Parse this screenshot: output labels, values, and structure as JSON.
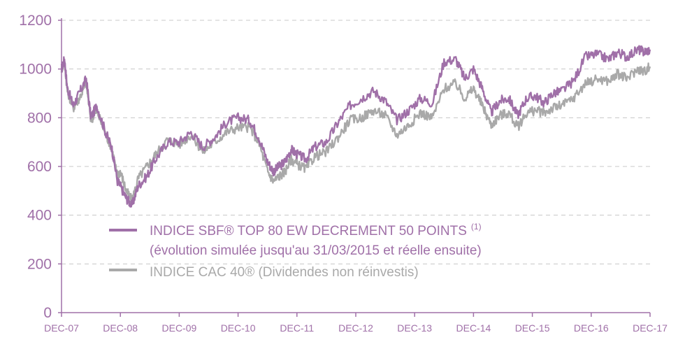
{
  "chart_data": {
    "type": "line",
    "title": "",
    "xlabel": "",
    "ylabel": "",
    "ylim": [
      0,
      1200
    ],
    "yticks": [
      0,
      200,
      400,
      600,
      800,
      1000,
      1200
    ],
    "xtick_labels": [
      "DEC-07",
      "DEC-08",
      "DEC-09",
      "DEC-10",
      "DEC-11",
      "DEC-12",
      "DEC-13",
      "DEC-14",
      "DEC-15",
      "DEC-16",
      "DEC-17"
    ],
    "grid": "horizontal dashed",
    "legend_position": "bottom-center",
    "colors": {
      "sbf": "#a070a8",
      "cac": "#a9a9a9",
      "axis": "#a070a8"
    },
    "series": [
      {
        "name": "INDICE SBF® TOP 80 EW DECREMENT 50 POINTS (1)",
        "name_main": "INDICE SBF® TOP 80 EW DECREMENT 50 POINTS",
        "name_sup": "(1)",
        "name_line2": "(évolution simulée jusqu'au 31/03/2015 et réelle ensuite)",
        "color": "#a070a8",
        "x": [
          0,
          0.05,
          0.1,
          0.2,
          0.3,
          0.42,
          0.5,
          0.6,
          0.75,
          0.85,
          0.95,
          1.0,
          1.1,
          1.2,
          1.3,
          1.45,
          1.6,
          1.8,
          2.0,
          2.2,
          2.4,
          2.6,
          2.8,
          3.0,
          3.2,
          3.35,
          3.5,
          3.6,
          3.7,
          3.8,
          3.9,
          4.0,
          4.15,
          4.3,
          4.5,
          4.7,
          4.9,
          5.1,
          5.3,
          5.5,
          5.7,
          5.9,
          6.1,
          6.3,
          6.5,
          6.7,
          6.85,
          7.0,
          7.15,
          7.3,
          7.45,
          7.6,
          7.75,
          7.9,
          8.05,
          8.2,
          8.35,
          8.5,
          8.7,
          8.9,
          9.1,
          9.3,
          9.45,
          9.6,
          9.8,
          9.9,
          10.0
        ],
        "values": [
          1000,
          1040,
          920,
          850,
          900,
          960,
          800,
          850,
          740,
          680,
          540,
          520,
          470,
          440,
          520,
          560,
          630,
          700,
          700,
          740,
          680,
          720,
          780,
          800,
          790,
          720,
          620,
          580,
          600,
          620,
          670,
          650,
          630,
          680,
          700,
          780,
          850,
          880,
          910,
          870,
          790,
          830,
          880,
          860,
          1030,
          1040,
          960,
          1000,
          920,
          820,
          870,
          880,
          810,
          880,
          890,
          860,
          900,
          910,
          950,
          1050,
          1060,
          1040,
          1070,
          1050,
          1080,
          1070,
          1080
        ]
      },
      {
        "name": "INDICE CAC 40® (Dividendes non réinvestis)",
        "name_main": "INDICE CAC 40®",
        "name_paren": " (Dividendes non réinvestis)",
        "color": "#a9a9a9",
        "x": [
          0,
          0.05,
          0.1,
          0.2,
          0.3,
          0.42,
          0.5,
          0.6,
          0.75,
          0.85,
          0.95,
          1.0,
          1.1,
          1.2,
          1.3,
          1.45,
          1.6,
          1.8,
          2.0,
          2.2,
          2.4,
          2.6,
          2.8,
          3.0,
          3.2,
          3.35,
          3.5,
          3.6,
          3.7,
          3.8,
          3.9,
          4.0,
          4.15,
          4.3,
          4.5,
          4.7,
          4.9,
          5.1,
          5.3,
          5.5,
          5.7,
          5.9,
          6.1,
          6.3,
          6.5,
          6.7,
          6.85,
          7.0,
          7.15,
          7.3,
          7.45,
          7.6,
          7.75,
          7.9,
          8.05,
          8.2,
          8.35,
          8.5,
          8.7,
          8.9,
          9.1,
          9.3,
          9.45,
          9.6,
          9.8,
          9.9,
          10.0
        ],
        "values": [
          1000,
          1030,
          910,
          840,
          880,
          940,
          790,
          830,
          730,
          680,
          560,
          580,
          500,
          460,
          550,
          600,
          650,
          710,
          690,
          730,
          660,
          700,
          740,
          760,
          760,
          700,
          580,
          540,
          560,
          580,
          630,
          610,
          590,
          640,
          660,
          720,
          790,
          800,
          830,
          810,
          730,
          770,
          820,
          800,
          920,
          940,
          880,
          920,
          850,
          770,
          810,
          820,
          760,
          820,
          830,
          820,
          840,
          850,
          880,
          940,
          960,
          950,
          980,
          960,
          1000,
          990,
          1010
        ]
      }
    ]
  }
}
